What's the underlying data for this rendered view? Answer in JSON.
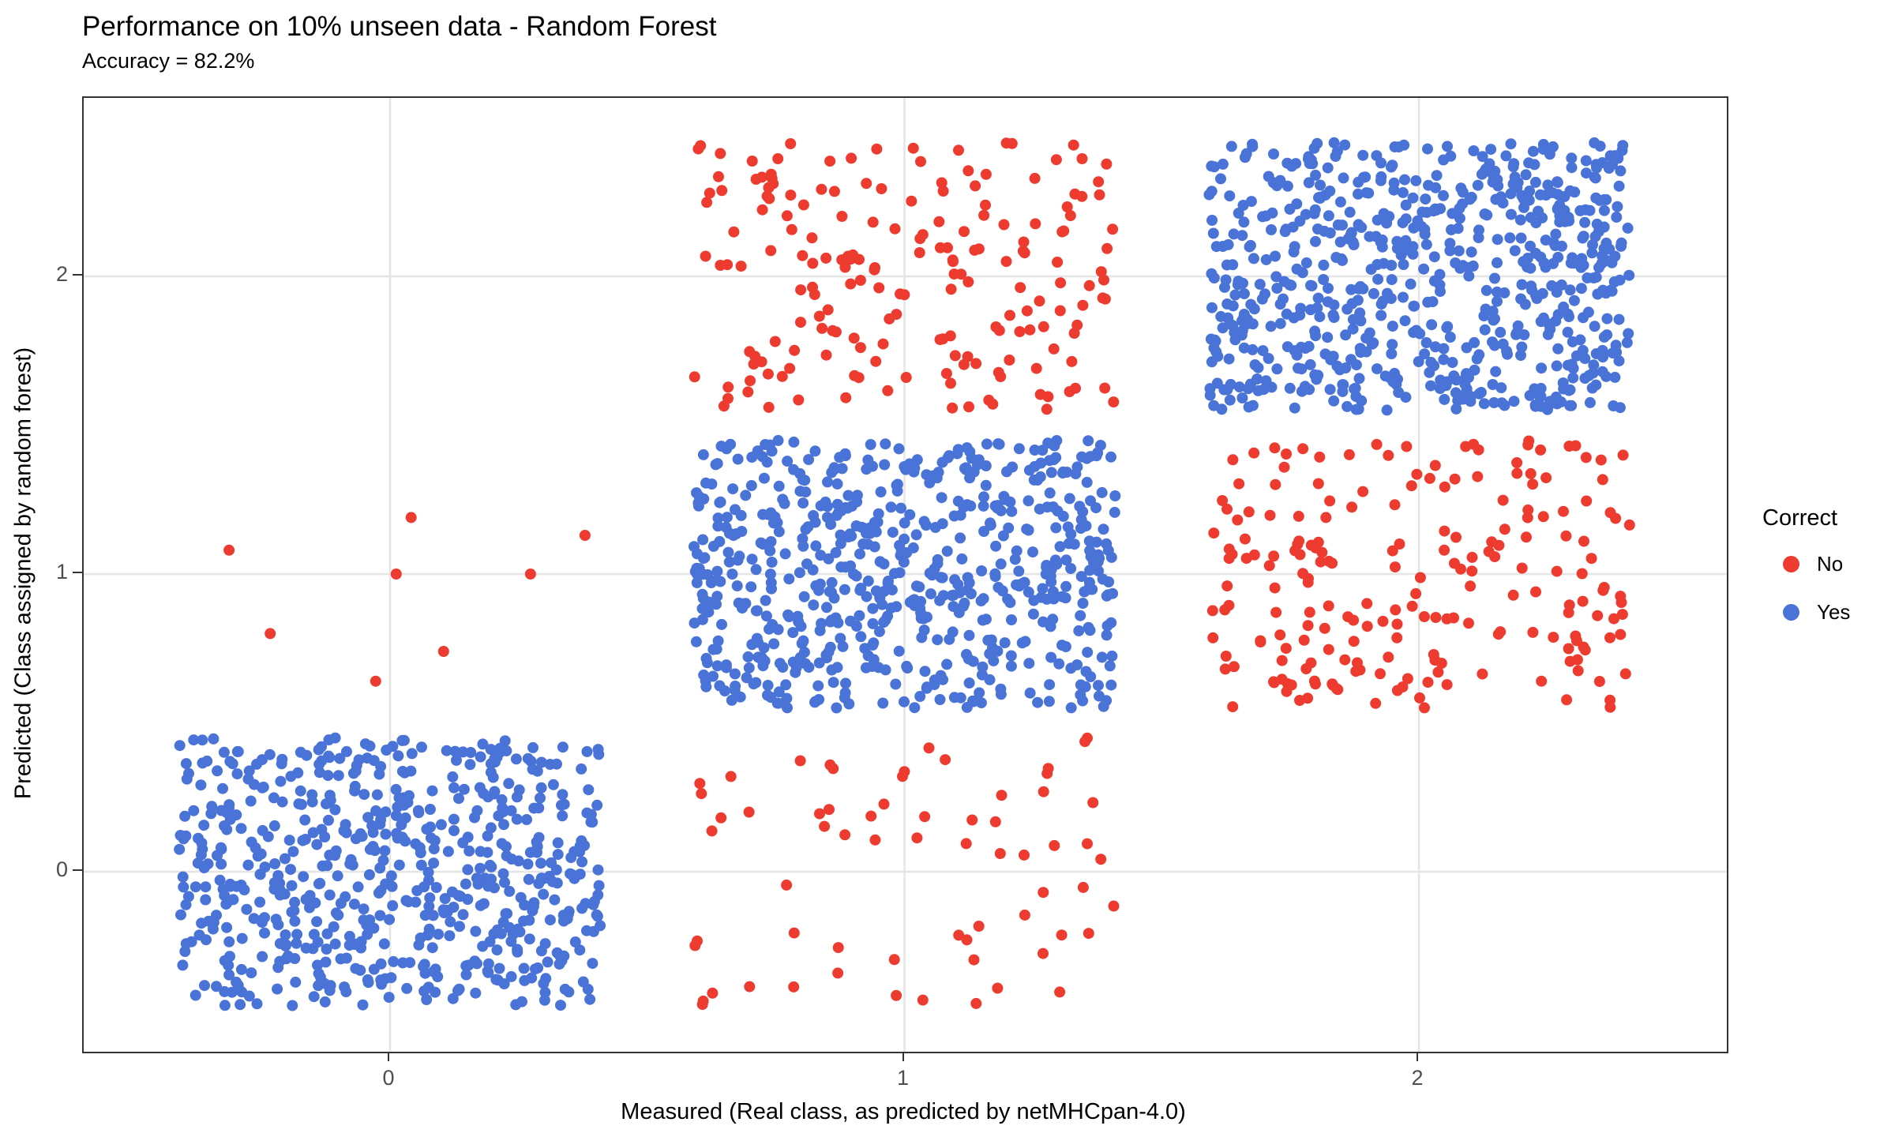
{
  "chart_data": {
    "type": "scatter",
    "title": "Performance on 10% unseen data - Random Forest",
    "subtitle": "Accuracy = 82.2%",
    "xlabel": "Measured (Real class, as predicted by netMHCpan-4.0)",
    "ylabel": "Predicted (Class assigned by random forest)",
    "x_ticks": [
      0,
      1,
      2
    ],
    "y_ticks": [
      0,
      1,
      2
    ],
    "x_tick_labels": [
      "0",
      "1",
      "2"
    ],
    "y_tick_labels": [
      "0",
      "1",
      "2"
    ],
    "xlim": [
      -0.6,
      2.6
    ],
    "ylim": [
      -0.6,
      2.6
    ],
    "grid": "major-only",
    "jitter": {
      "width": 0.41,
      "height": 0.45
    },
    "point_radius_px": 7,
    "legend": {
      "title": "Correct",
      "position": "right",
      "items": [
        {
          "label": "No",
          "color": "#EE3B2F"
        },
        {
          "label": "Yes",
          "color": "#4A73D8"
        }
      ]
    },
    "colors": {
      "no": "#EE3B2F",
      "yes": "#4A73D8",
      "gridline": "#E5E5E5",
      "panel_border": "#333333",
      "tick_text": "#4D4D4D"
    },
    "clusters": [
      {
        "measured": 0,
        "predicted": 0,
        "correct": "Yes",
        "count": 620
      },
      {
        "measured": 1,
        "predicted": 0,
        "correct": "No",
        "count": 65
      },
      {
        "measured": 1,
        "predicted": 1,
        "correct": "Yes",
        "count": 650
      },
      {
        "measured": 1,
        "predicted": 2,
        "correct": "No",
        "count": 190
      },
      {
        "measured": 2,
        "predicted": 1,
        "correct": "No",
        "count": 210
      },
      {
        "measured": 2,
        "predicted": 2,
        "correct": "Yes",
        "count": 700
      }
    ],
    "sparse_points": [
      {
        "measured": 0,
        "predicted": 1,
        "correct": "No",
        "x": 0.041,
        "y": 1.19
      },
      {
        "measured": 0,
        "predicted": 1,
        "correct": "No",
        "x": 0.379,
        "y": 1.13
      },
      {
        "measured": 0,
        "predicted": 1,
        "correct": "No",
        "x": -0.313,
        "y": 1.08
      },
      {
        "measured": 0,
        "predicted": 1,
        "correct": "No",
        "x": 0.012,
        "y": 1.0
      },
      {
        "measured": 0,
        "predicted": 1,
        "correct": "No",
        "x": 0.273,
        "y": 1.0
      },
      {
        "measured": 0,
        "predicted": 1,
        "correct": "No",
        "x": -0.233,
        "y": 0.8
      },
      {
        "measured": 0,
        "predicted": 1,
        "correct": "No",
        "x": 0.104,
        "y": 0.74
      },
      {
        "measured": 0,
        "predicted": 1,
        "correct": "No",
        "x": -0.028,
        "y": 0.64
      }
    ]
  }
}
